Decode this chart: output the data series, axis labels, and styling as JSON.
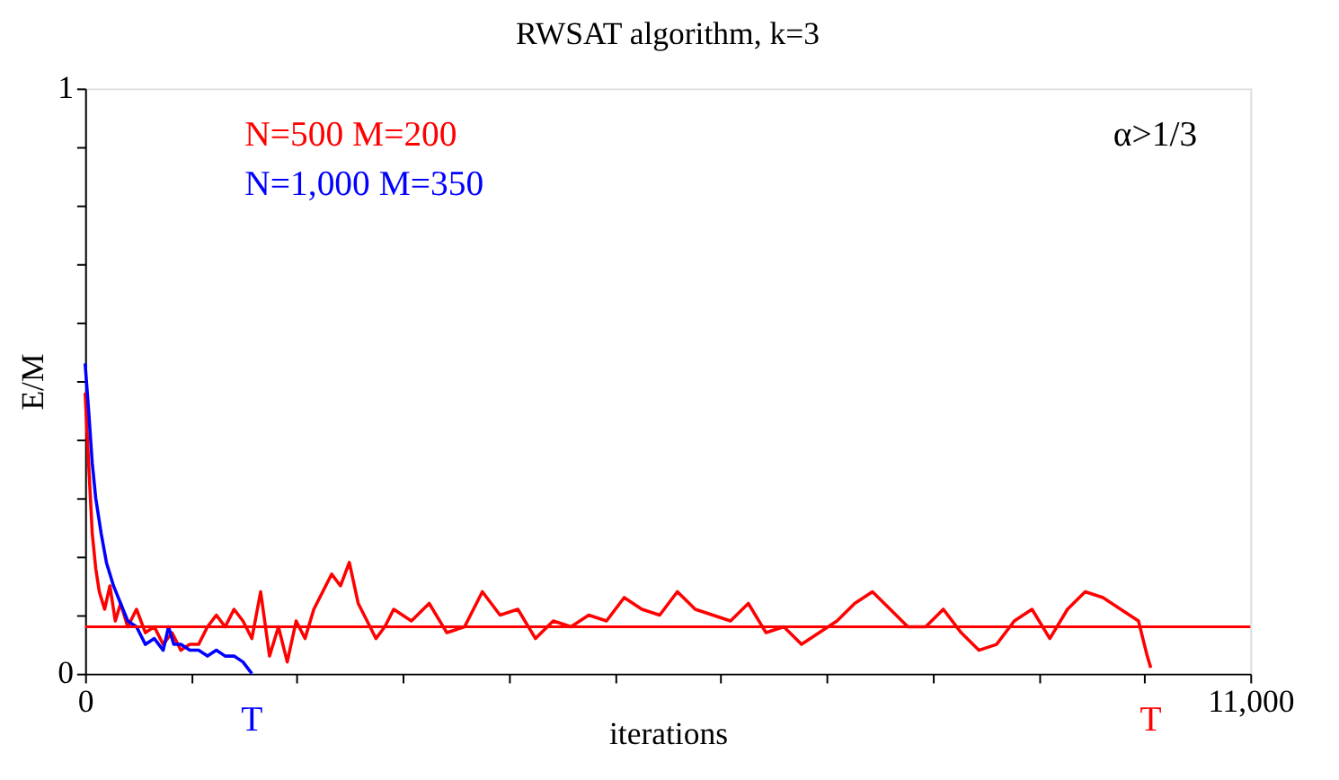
{
  "chart_data": {
    "type": "line",
    "title": "RWSAT algorithm, k=3",
    "xlabel": "iterations",
    "ylabel": "E/M",
    "xlim": [
      0,
      11000
    ],
    "ylim": [
      0,
      1
    ],
    "xticks": [
      0,
      {
        "value": 1000,
        "label": null
      },
      {
        "value": 2000,
        "label": null
      },
      {
        "value": 3000,
        "label": null
      },
      {
        "value": 4000,
        "label": null
      },
      {
        "value": 5000,
        "label": null
      },
      {
        "value": 6000,
        "label": null
      },
      {
        "value": 7000,
        "label": null
      },
      {
        "value": 8000,
        "label": null
      },
      {
        "value": 9000,
        "label": null
      },
      {
        "value": 10000,
        "label": null
      },
      {
        "value": 11000,
        "label": "11,000"
      }
    ],
    "yticks": [
      0,
      {
        "value": 0.1,
        "label": null
      },
      {
        "value": 0.2,
        "label": null
      },
      {
        "value": 0.3,
        "label": null
      },
      {
        "value": 0.4,
        "label": null
      },
      {
        "value": 0.5,
        "label": null
      },
      {
        "value": 0.6,
        "label": null
      },
      {
        "value": 0.7,
        "label": null
      },
      {
        "value": 0.8,
        "label": null
      },
      {
        "value": 0.9,
        "label": null
      },
      1
    ],
    "grid": false,
    "legend": "top left",
    "marker": "none",
    "line_style": "solid",
    "series": [
      {
        "name": "N=500      M=200",
        "color": "#ff0000",
        "x": [
          0,
          33,
          67,
          100,
          134,
          184,
          234,
          285,
          335,
          402,
          485,
          569,
          653,
          737,
          820,
          904,
          988,
          1071,
          1155,
          1239,
          1322,
          1406,
          1490,
          1574,
          1657,
          1741,
          1825,
          1908,
          1992,
          2076,
          2159,
          2243,
          2327,
          2411,
          2494,
          2578,
          2662,
          2745,
          2829,
          2913,
          3080,
          3248,
          3415,
          3582,
          3750,
          3917,
          4085,
          4252,
          4419,
          4587,
          4754,
          4922,
          5089,
          5256,
          5424,
          5591,
          5759,
          5926,
          6093,
          6261,
          6428,
          6596,
          6763,
          6930,
          7098,
          7265,
          7433,
          7600,
          7767,
          7935,
          8102,
          8270,
          8437,
          8604,
          8772,
          8939,
          9107,
          9274,
          9441,
          9609,
          9776,
          9944,
          10027,
          10060
        ],
        "values": [
          0.48,
          0.36,
          0.24,
          0.18,
          0.14,
          0.11,
          0.15,
          0.09,
          0.12,
          0.08,
          0.11,
          0.07,
          0.08,
          0.05,
          0.07,
          0.04,
          0.05,
          0.05,
          0.08,
          0.1,
          0.08,
          0.11,
          0.09,
          0.06,
          0.14,
          0.03,
          0.08,
          0.02,
          0.09,
          0.06,
          0.11,
          0.14,
          0.17,
          0.15,
          0.19,
          0.12,
          0.09,
          0.06,
          0.08,
          0.11,
          0.09,
          0.12,
          0.07,
          0.08,
          0.14,
          0.1,
          0.11,
          0.06,
          0.09,
          0.08,
          0.1,
          0.09,
          0.13,
          0.11,
          0.1,
          0.14,
          0.11,
          0.1,
          0.09,
          0.12,
          0.07,
          0.08,
          0.05,
          0.07,
          0.09,
          0.12,
          0.14,
          0.11,
          0.08,
          0.08,
          0.11,
          0.07,
          0.04,
          0.05,
          0.09,
          0.11,
          0.06,
          0.11,
          0.14,
          0.13,
          0.11,
          0.09,
          0.03,
          0.01
        ]
      },
      {
        "name": "N=1,000      M=350",
        "color": "#0000ff",
        "x": [
          0,
          33,
          67,
          100,
          151,
          201,
          268,
          335,
          402,
          485,
          569,
          653,
          737,
          787,
          837,
          904,
          988,
          1071,
          1155,
          1239,
          1322,
          1406,
          1490,
          1574
        ],
        "values": [
          0.53,
          0.45,
          0.36,
          0.3,
          0.24,
          0.19,
          0.15,
          0.12,
          0.09,
          0.08,
          0.05,
          0.06,
          0.04,
          0.08,
          0.05,
          0.05,
          0.04,
          0.04,
          0.03,
          0.04,
          0.03,
          0.03,
          0.02,
          0.0
        ]
      }
    ],
    "ref_lines": [
      {
        "axis": "y",
        "value": 0.08,
        "color": "#ff0000"
      }
    ],
    "annotations": [
      "α>1/3",
      {
        "text": "T",
        "x": 10060,
        "y": 0
      },
      {
        "text": "T",
        "x": 1574,
        "y": 0
      }
    ]
  }
}
